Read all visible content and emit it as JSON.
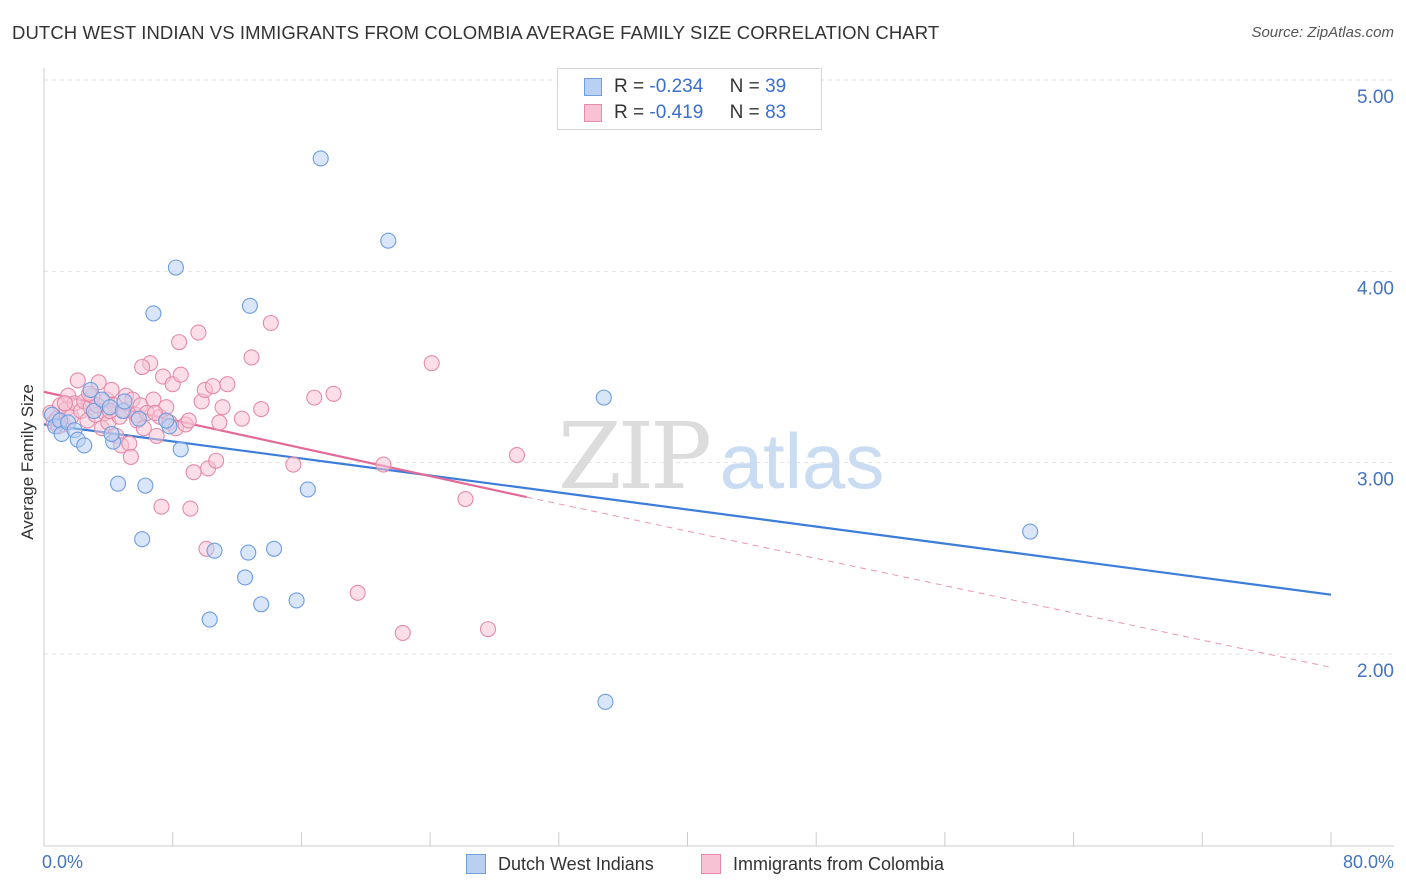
{
  "title": "DUTCH WEST INDIAN VS IMMIGRANTS FROM COLOMBIA AVERAGE FAMILY SIZE CORRELATION CHART",
  "source": "Source: ZipAtlas.com",
  "watermark": {
    "zip": "ZIP",
    "atlas": "atlas"
  },
  "legend": {
    "items": [
      {
        "r_label": "R =",
        "r_value": "-0.234",
        "n_label": "N =",
        "n_value": "39"
      },
      {
        "r_label": "R =",
        "r_value": "-0.419",
        "n_label": "N =",
        "n_value": "83"
      }
    ]
  },
  "chart_data": {
    "type": "scatter",
    "title": "DUTCH WEST INDIAN VS IMMIGRANTS FROM COLOMBIA AVERAGE FAMILY SIZE CORRELATION CHART",
    "xlabel": "",
    "ylabel": "Average Family Size",
    "xlim": [
      0,
      80
    ],
    "ylim": [
      1.0,
      5.05
    ],
    "x_tick_labels": [
      "0.0%",
      "80.0%"
    ],
    "y_ticks": [
      2.0,
      3.0,
      4.0,
      5.0
    ],
    "y_tick_labels": [
      "2.00",
      "3.00",
      "4.00",
      "5.00"
    ],
    "grid": true,
    "legend_position": "top-center",
    "colors": {
      "series1": "#3b7dd8",
      "series2": "#e26a98",
      "series1_fill": "#b9d0f3",
      "series2_fill": "#f7c2d3"
    },
    "series": [
      {
        "name": "Dutch West Indians",
        "points": [
          [
            0.5,
            3.25
          ],
          [
            0.7,
            3.19
          ],
          [
            1.0,
            3.22
          ],
          [
            1.1,
            3.15
          ],
          [
            1.5,
            3.21
          ],
          [
            1.9,
            3.17
          ],
          [
            2.1,
            3.12
          ],
          [
            2.5,
            3.09
          ],
          [
            2.9,
            3.38
          ],
          [
            3.1,
            3.27
          ],
          [
            3.6,
            3.33
          ],
          [
            4.1,
            3.29
          ],
          [
            4.3,
            3.11
          ],
          [
            4.2,
            3.15
          ],
          [
            4.6,
            2.89
          ],
          [
            4.9,
            3.27
          ],
          [
            5.9,
            3.23
          ],
          [
            6.1,
            2.6
          ],
          [
            6.3,
            2.88
          ],
          [
            6.8,
            3.78
          ],
          [
            7.8,
            3.19
          ],
          [
            8.2,
            4.02
          ],
          [
            8.5,
            3.07
          ],
          [
            10.3,
            2.18
          ],
          [
            10.6,
            2.54
          ],
          [
            12.5,
            2.4
          ],
          [
            12.7,
            2.53
          ],
          [
            12.8,
            3.82
          ],
          [
            13.5,
            2.26
          ],
          [
            14.3,
            2.55
          ],
          [
            15.7,
            2.28
          ],
          [
            16.4,
            2.86
          ],
          [
            17.2,
            4.59
          ],
          [
            21.4,
            4.16
          ],
          [
            34.8,
            3.34
          ],
          [
            34.9,
            1.75
          ],
          [
            61.3,
            2.64
          ],
          [
            7.6,
            3.22
          ],
          [
            5.0,
            3.32
          ]
        ]
      },
      {
        "name": "Immigrants from Colombia",
        "points": [
          [
            0.4,
            3.26
          ],
          [
            0.6,
            3.21
          ],
          [
            0.8,
            3.23
          ],
          [
            1.0,
            3.3
          ],
          [
            1.2,
            3.2
          ],
          [
            1.4,
            3.28
          ],
          [
            1.5,
            3.35
          ],
          [
            1.7,
            3.24
          ],
          [
            1.9,
            3.31
          ],
          [
            2.1,
            3.43
          ],
          [
            2.3,
            3.27
          ],
          [
            2.5,
            3.32
          ],
          [
            2.7,
            3.22
          ],
          [
            2.9,
            3.29
          ],
          [
            3.0,
            3.35
          ],
          [
            3.2,
            3.25
          ],
          [
            3.4,
            3.42
          ],
          [
            3.6,
            3.18
          ],
          [
            3.8,
            3.26
          ],
          [
            3.9,
            3.33
          ],
          [
            4.0,
            3.21
          ],
          [
            4.2,
            3.38
          ],
          [
            4.4,
            3.3
          ],
          [
            4.5,
            3.14
          ],
          [
            4.7,
            3.24
          ],
          [
            4.8,
            3.09
          ],
          [
            5.0,
            3.27
          ],
          [
            5.1,
            3.35
          ],
          [
            5.3,
            3.1
          ],
          [
            5.5,
            3.33
          ],
          [
            5.7,
            3.25
          ],
          [
            5.8,
            3.22
          ],
          [
            6.0,
            3.3
          ],
          [
            6.2,
            3.18
          ],
          [
            6.4,
            3.26
          ],
          [
            6.6,
            3.52
          ],
          [
            6.8,
            3.33
          ],
          [
            7.0,
            3.14
          ],
          [
            7.2,
            3.24
          ],
          [
            7.4,
            3.45
          ],
          [
            7.6,
            3.29
          ],
          [
            7.8,
            3.21
          ],
          [
            8.0,
            3.41
          ],
          [
            8.2,
            3.18
          ],
          [
            8.4,
            3.63
          ],
          [
            8.5,
            3.46
          ],
          [
            8.8,
            3.2
          ],
          [
            9.0,
            3.22
          ],
          [
            9.3,
            2.95
          ],
          [
            9.6,
            3.68
          ],
          [
            9.8,
            3.32
          ],
          [
            10.0,
            3.38
          ],
          [
            10.2,
            2.97
          ],
          [
            10.5,
            3.4
          ],
          [
            10.7,
            3.01
          ],
          [
            10.9,
            3.21
          ],
          [
            11.1,
            3.29
          ],
          [
            11.4,
            3.41
          ],
          [
            12.3,
            3.23
          ],
          [
            12.9,
            3.55
          ],
          [
            13.5,
            3.28
          ],
          [
            14.1,
            3.73
          ],
          [
            15.5,
            2.99
          ],
          [
            16.8,
            3.34
          ],
          [
            18.0,
            3.36
          ],
          [
            19.5,
            2.32
          ],
          [
            21.1,
            2.99
          ],
          [
            22.3,
            2.11
          ],
          [
            24.1,
            3.52
          ],
          [
            26.2,
            2.81
          ],
          [
            27.6,
            2.13
          ],
          [
            29.4,
            3.04
          ],
          [
            3.3,
            3.3
          ],
          [
            6.1,
            3.5
          ],
          [
            6.9,
            3.26
          ],
          [
            9.1,
            2.76
          ],
          [
            7.3,
            2.77
          ],
          [
            10.1,
            2.55
          ],
          [
            5.4,
            3.03
          ],
          [
            4.1,
            3.27
          ],
          [
            2.8,
            3.36
          ],
          [
            1.3,
            3.31
          ],
          [
            0.9,
            3.19
          ]
        ]
      }
    ],
    "trend_lines": [
      {
        "series": "Dutch West Indians",
        "x": [
          0,
          80
        ],
        "y": [
          3.2,
          2.31
        ],
        "style": "solid"
      },
      {
        "series": "Immigrants from Colombia",
        "x": [
          0,
          30
        ],
        "y": [
          3.37,
          2.82
        ],
        "style": "solid"
      },
      {
        "series": "Immigrants from Colombia",
        "x": [
          30,
          80
        ],
        "y": [
          2.82,
          1.93
        ],
        "style": "dashed"
      }
    ]
  }
}
